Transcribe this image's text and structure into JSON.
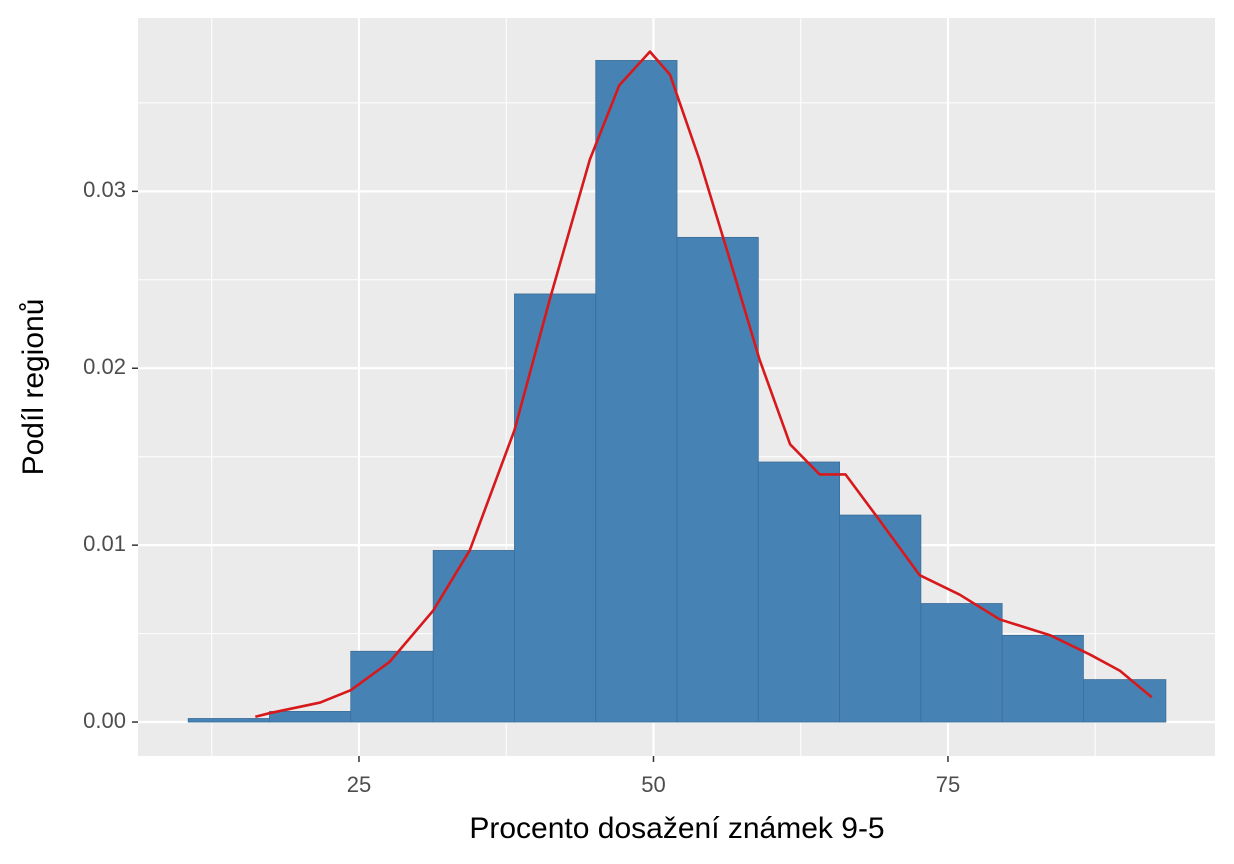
{
  "chart_data": {
    "type": "histogram",
    "x_label": "Procento dosažení známek 9-5",
    "y_label": "Podíl regionů",
    "bins": [
      10.5,
      17.4,
      24.3,
      31.3,
      38.2,
      45.1,
      52.0,
      58.9,
      65.8,
      72.7,
      79.6,
      86.5,
      93.5
    ],
    "values": [
      0.0002,
      0.0006,
      0.004,
      0.0097,
      0.0242,
      0.0374,
      0.0274,
      0.0147,
      0.0117,
      0.0067,
      0.0049,
      0.0024
    ],
    "color": "#4682b4",
    "line": {
      "x": [
        16.2,
        17.4,
        21.7,
        24.3,
        27.6,
        31.3,
        34.4,
        38.2,
        41.2,
        44.6,
        47.1,
        49.7,
        51.4,
        53.9,
        56.5,
        59.0,
        61.6,
        64.1,
        66.3,
        69.2,
        72.6,
        76.0,
        79.4,
        83.7,
        87.1,
        89.6,
        92.3
      ],
      "values": [
        0.0003,
        0.0005,
        0.0011,
        0.0018,
        0.0034,
        0.0063,
        0.0097,
        0.0165,
        0.0239,
        0.0318,
        0.036,
        0.0379,
        0.0366,
        0.0318,
        0.0261,
        0.0205,
        0.0157,
        0.014,
        0.014,
        0.0114,
        0.0083,
        0.0072,
        0.0058,
        0.0049,
        0.0038,
        0.0029,
        0.0014
      ],
      "color": "#d7191c"
    },
    "xlim": [
      6.24,
      97.67
    ],
    "ylim": [
      -0.00192,
      0.0398
    ],
    "xticks": [
      25,
      50,
      75
    ],
    "yticks": [
      {
        "value": 0,
        "label": "0.00"
      },
      {
        "value": 0.01,
        "label": "0.01"
      },
      {
        "value": 0.02,
        "label": "0.02"
      },
      {
        "value": 0.03,
        "label": "0.03"
      }
    ],
    "grid": true
  }
}
